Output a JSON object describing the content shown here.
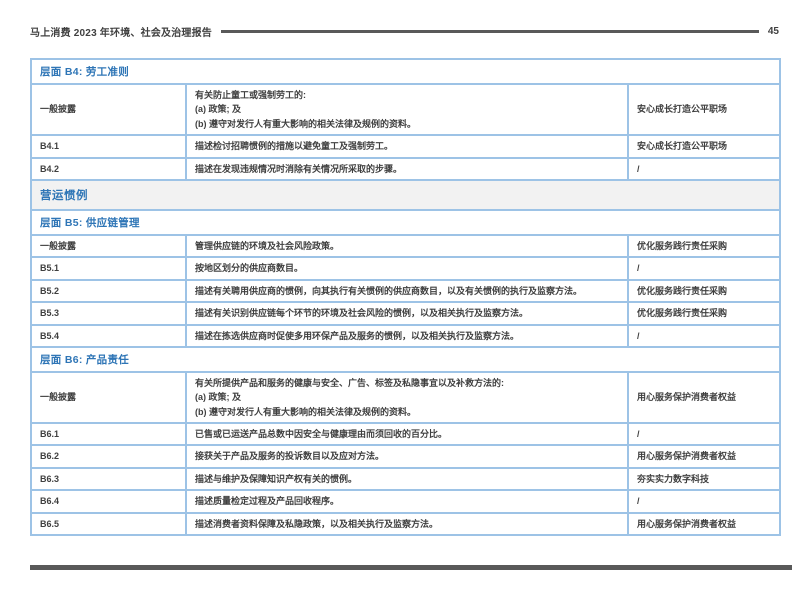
{
  "page": {
    "header_title": "马上消费 2023 年环境、社会及治理报告",
    "page_number": "45"
  },
  "colors": {
    "accent_blue": "#2e75b6",
    "table_border": "#9dc3e6",
    "section_bg": "#f2f2f2",
    "rule_dark": "#595959",
    "body_text": "#3f3f3f"
  },
  "table": {
    "rows": [
      {
        "type": "aspect",
        "label": "层面 B4: 劳工准则"
      },
      {
        "type": "data",
        "code": "一般披露",
        "desc": "有关防止童工或强制劳工的:\n(a) 政策; 及\n(b) 遵守对发行人有重大影响的相关法律及规例的资料。",
        "ref": "安心成长打造公平职场"
      },
      {
        "type": "data",
        "code": "B4.1",
        "desc": "描述检讨招聘惯例的措施以避免童工及强制劳工。",
        "ref": "安心成长打造公平职场"
      },
      {
        "type": "data",
        "code": "B4.2",
        "desc": "描述在发现违规情况时消除有关情况所采取的步骤。",
        "ref": "/"
      },
      {
        "type": "section",
        "label": "营运惯例"
      },
      {
        "type": "aspect",
        "label": "层面 B5: 供应链管理"
      },
      {
        "type": "data",
        "code": "一般披露",
        "desc": "管理供应链的环境及社会风险政策。",
        "ref": "优化服务践行责任采购"
      },
      {
        "type": "data",
        "code": "B5.1",
        "desc": "按地区划分的供应商数目。",
        "ref": "/"
      },
      {
        "type": "data",
        "code": "B5.2",
        "desc": "描述有关聘用供应商的惯例，向其执行有关惯例的供应商数目，以及有关惯例的执行及监察方法。",
        "ref": "优化服务践行责任采购"
      },
      {
        "type": "data",
        "code": "B5.3",
        "desc": "描述有关识别供应链每个环节的环境及社会风险的惯例，以及相关执行及监察方法。",
        "ref": "优化服务践行责任采购"
      },
      {
        "type": "data",
        "code": "B5.4",
        "desc": "描述在拣选供应商时促使多用环保产品及服务的惯例，以及相关执行及监察方法。",
        "ref": "/"
      },
      {
        "type": "aspect",
        "label": "层面 B6: 产品责任"
      },
      {
        "type": "data",
        "code": "一般披露",
        "desc": "有关所提供产品和服务的健康与安全、广告、标签及私隐事宜以及补救方法的:\n(a) 政策; 及\n(b) 遵守对发行人有重大影响的相关法律及规例的资料。",
        "ref": "用心服务保护消费者权益"
      },
      {
        "type": "data",
        "code": "B6.1",
        "desc": "已售或已运送产品总数中因安全与健康理由而须回收的百分比。",
        "ref": "/"
      },
      {
        "type": "data",
        "code": "B6.2",
        "desc": "接获关于产品及服务的投诉数目以及应对方法。",
        "ref": "用心服务保护消费者权益"
      },
      {
        "type": "data",
        "code": "B6.3",
        "desc": "描述与维护及保障知识产权有关的惯例。",
        "ref": "夯实实力数字科技"
      },
      {
        "type": "data",
        "code": "B6.4",
        "desc": "描述质量检定过程及产品回收程序。",
        "ref": "/"
      },
      {
        "type": "data",
        "code": "B6.5",
        "desc": "描述消费者资料保障及私隐政策，以及相关执行及监察方法。",
        "ref": "用心服务保护消费者权益"
      }
    ]
  }
}
